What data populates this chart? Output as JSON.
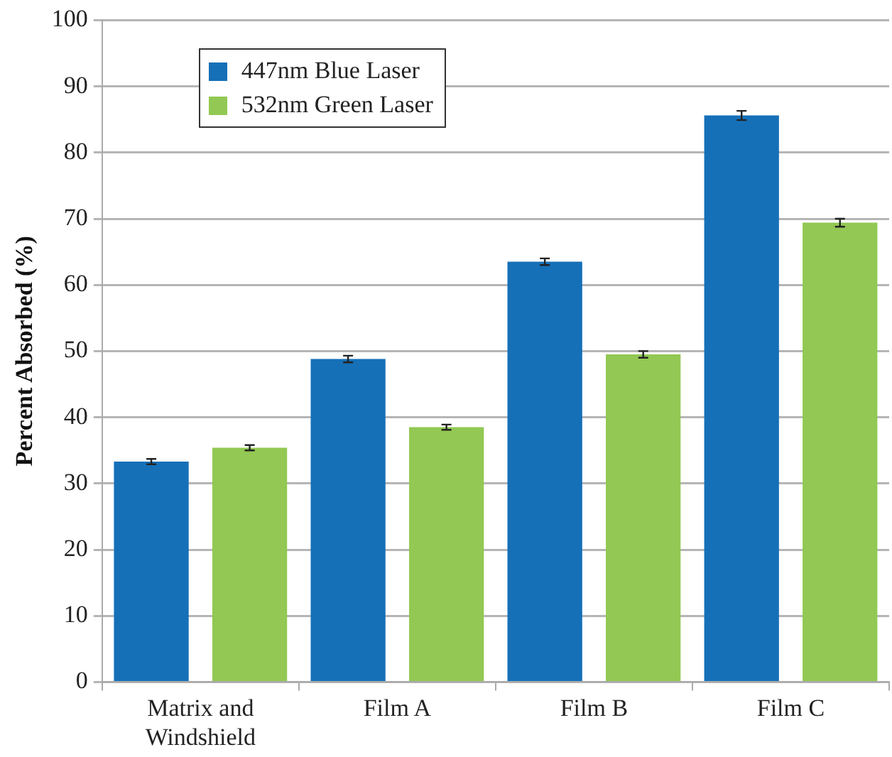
{
  "chart_data": {
    "type": "bar",
    "ylabel": "Percent Absorbed (%)",
    "categories": [
      "Matrix and Windshield",
      "Film A",
      "Film B",
      "Film C"
    ],
    "series": [
      {
        "name": "447nm Blue Laser",
        "color": "#1570b8",
        "values": [
          33.3,
          48.8,
          63.5,
          85.6
        ],
        "errors": [
          0.4,
          0.5,
          0.5,
          0.7
        ]
      },
      {
        "name": "532nm Green Laser",
        "color": "#92c853",
        "values": [
          35.4,
          38.5,
          49.5,
          69.4
        ],
        "errors": [
          0.4,
          0.4,
          0.5,
          0.6
        ]
      }
    ],
    "ylim": [
      0,
      100
    ],
    "yticks": [
      0,
      10,
      20,
      30,
      40,
      50,
      60,
      70,
      80,
      90,
      100
    ],
    "grid": "y",
    "legend": "top left"
  }
}
